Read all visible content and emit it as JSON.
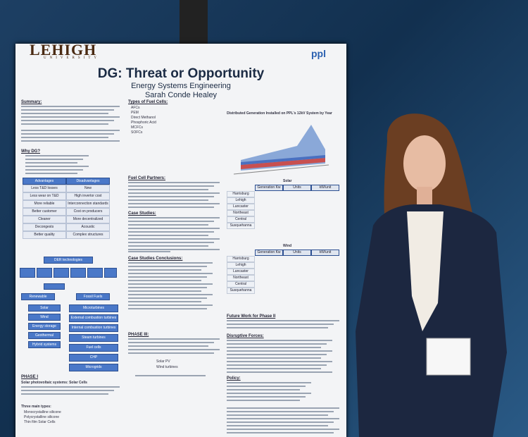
{
  "logo": {
    "name": "LEHIGH",
    "sub": "UNIVERSITY"
  },
  "sponsor": "ppl",
  "title": "DG: Threat or Opportunity",
  "subtitle": "Energy Systems Engineering",
  "author": "Sarah Conde Healey",
  "left": {
    "headings": [
      "Summary:",
      "Why DG?"
    ],
    "table": {
      "header": [
        "Advantages",
        "Disadvantages"
      ],
      "rows": [
        [
          "Less T&D losses",
          "New"
        ],
        [
          "Less wear on T&D",
          "High invertor cost"
        ],
        [
          "More reliable",
          "Interconnection standards"
        ],
        [
          "Better customer",
          "Cost on producers"
        ],
        [
          "Cleaner",
          "More decentralized"
        ],
        [
          "Decongests",
          "Acoustic"
        ],
        [
          "Better quality",
          "Complex structures"
        ]
      ]
    }
  },
  "diagram": {
    "root": "DER technologies",
    "branches": [
      "Renewable",
      "Fossil Fuels"
    ],
    "renewable": [
      "Solar",
      "Wind",
      "Energy storage",
      "Geothermal",
      "Hybrid systems"
    ],
    "fossil": [
      "Microturbines",
      "External combustion turbines",
      "Internal combustion turbines",
      "Steam turbines",
      "Fuel cells",
      "CHP",
      "Microgrids"
    ]
  },
  "phase1": {
    "heading": "PHASE I",
    "subheading": "Solar photovoltaic systems: Solar Cells",
    "types_heading": "Three main types:",
    "types": [
      "Monocrystalline silicone",
      "Polycrystalline silicone",
      "Thin film Solar Cells"
    ]
  },
  "middle": {
    "headings": [
      "Types of Fuel Cells:",
      "Fuel Cell Partners:",
      "Case Studies:",
      "Case Studies Conclusions:",
      "PHASE III:"
    ],
    "fuel_cells": [
      "AFCs",
      "PEM",
      "Direct Methanol",
      "Phosphoric Acid",
      "MCFCs",
      "SOFCs"
    ],
    "bottom": [
      "Solar PV",
      "Wind turbines"
    ]
  },
  "right": {
    "chart_title": "Distributed Generation Installed on PPL's 12kV System by Year",
    "tables": [
      "Solar",
      "Wind"
    ],
    "table_header": [
      "Generation Kw",
      "Units",
      "kW/unit"
    ],
    "regions": [
      "Harrisburg",
      "Lehigh",
      "Lancaster",
      "Northeast",
      "Central",
      "Susquehanna"
    ],
    "headings": [
      "Future Work for Phase II",
      "Disruptive Forces:",
      "Policy:"
    ]
  }
}
